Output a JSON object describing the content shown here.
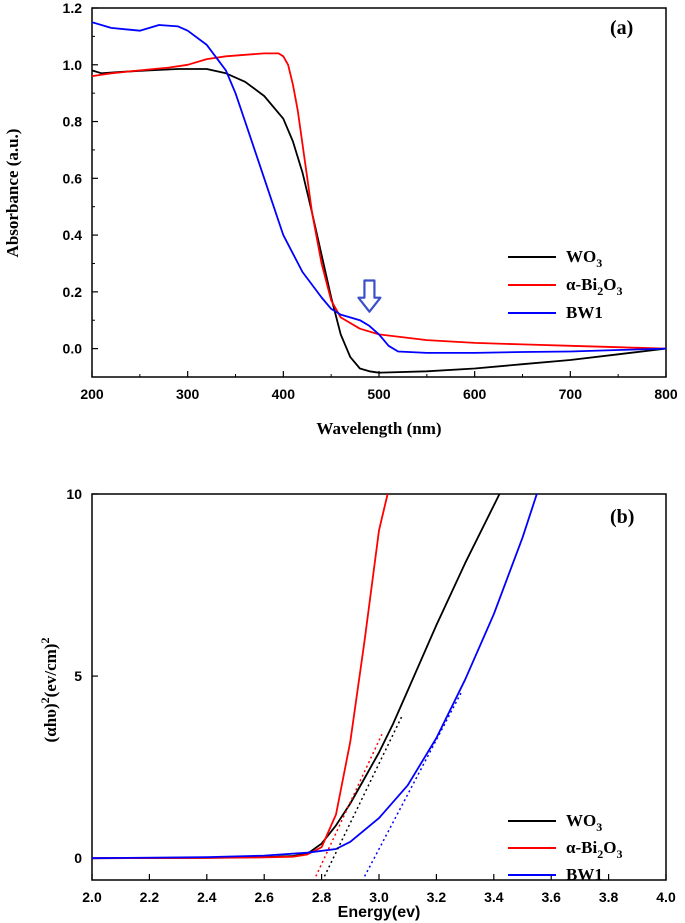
{
  "colors": {
    "wo3": "#000000",
    "bi2o3": "#ff0000",
    "bw1": "#0000ff",
    "arrow": "#3b4fc8"
  },
  "chart_data": [
    {
      "type": "line",
      "panel_label": "(a)",
      "xlabel": "Wavelength (nm)",
      "ylabel": "Absorbance (a.u.)",
      "xlim": [
        200,
        800
      ],
      "ylim": [
        -0.1,
        1.2
      ],
      "xticks": [
        "200",
        "300",
        "400",
        "500",
        "600",
        "700",
        "800"
      ],
      "yticks": [
        "0.0",
        "0.2",
        "0.4",
        "0.6",
        "0.8",
        "1.0",
        "1.2"
      ],
      "xtick_values": [
        200,
        300,
        400,
        500,
        600,
        700,
        800
      ],
      "ytick_values": [
        0.0,
        0.2,
        0.4,
        0.6,
        0.8,
        1.0,
        1.2
      ],
      "legend_position": "right",
      "legend": [
        {
          "base": "WO",
          "sub": "3",
          "rest": "",
          "sub2": "",
          "color_key": "wo3"
        },
        {
          "base": "α-Bi",
          "sub": "2",
          "rest": "O",
          "sub2": "3",
          "color_key": "bi2o3"
        },
        {
          "base": "BW1",
          "sub": "",
          "rest": "",
          "sub2": "",
          "color_key": "bw1"
        }
      ],
      "annotation": {
        "type": "arrow-down",
        "x": 490,
        "y_top": 0.24,
        "y_bottom": 0.13
      },
      "series": [
        {
          "name": "WO3",
          "color_key": "wo3",
          "x": [
            200,
            210,
            230,
            260,
            290,
            320,
            340,
            360,
            380,
            400,
            410,
            420,
            430,
            440,
            450,
            460,
            470,
            480,
            490,
            500,
            550,
            600,
            650,
            700,
            750,
            800
          ],
          "y": [
            0.98,
            0.97,
            0.975,
            0.98,
            0.985,
            0.985,
            0.97,
            0.94,
            0.89,
            0.81,
            0.73,
            0.62,
            0.48,
            0.33,
            0.18,
            0.05,
            -0.03,
            -0.07,
            -0.08,
            -0.085,
            -0.08,
            -0.07,
            -0.055,
            -0.04,
            -0.02,
            0.0
          ]
        },
        {
          "name": "α-Bi2O3",
          "color_key": "bi2o3",
          "x": [
            200,
            220,
            250,
            280,
            300,
            320,
            340,
            360,
            380,
            395,
            400,
            405,
            410,
            415,
            420,
            425,
            430,
            440,
            450,
            460,
            480,
            500,
            550,
            600,
            650,
            700,
            750,
            800
          ],
          "y": [
            0.96,
            0.97,
            0.98,
            0.99,
            1.0,
            1.02,
            1.03,
            1.035,
            1.04,
            1.04,
            1.03,
            1.0,
            0.93,
            0.84,
            0.72,
            0.6,
            0.48,
            0.3,
            0.17,
            0.11,
            0.07,
            0.05,
            0.03,
            0.02,
            0.015,
            0.01,
            0.005,
            0.0
          ]
        },
        {
          "name": "BW1",
          "color_key": "bw1",
          "x": [
            200,
            220,
            250,
            270,
            290,
            300,
            320,
            340,
            350,
            360,
            380,
            400,
            420,
            440,
            450,
            460,
            480,
            490,
            500,
            510,
            520,
            550,
            600,
            650,
            700,
            750,
            800
          ],
          "y": [
            1.15,
            1.13,
            1.12,
            1.14,
            1.135,
            1.12,
            1.07,
            0.98,
            0.9,
            0.8,
            0.6,
            0.4,
            0.27,
            0.18,
            0.14,
            0.12,
            0.1,
            0.08,
            0.05,
            0.01,
            -0.01,
            -0.015,
            -0.015,
            -0.012,
            -0.01,
            -0.005,
            0.0
          ]
        }
      ]
    },
    {
      "type": "line",
      "panel_label": "(b)",
      "xlabel": "Energy(ev)",
      "ylabel": "(αhυ)2(ev/cm)2",
      "ylabel_parts": {
        "a": "(αhυ)",
        "sup1": "2",
        "b": "(ev/cm)",
        "sup2": "2"
      },
      "xlim": [
        2.0,
        4.0
      ],
      "ylim": [
        -0.6,
        10
      ],
      "xticks": [
        "2.0",
        "2.2",
        "2.4",
        "2.6",
        "2.8",
        "3.0",
        "3.2",
        "3.4",
        "3.6",
        "3.8",
        "4.0"
      ],
      "yticks": [
        "0",
        "5",
        "10"
      ],
      "xtick_values": [
        2.0,
        2.2,
        2.4,
        2.6,
        2.8,
        3.0,
        3.2,
        3.4,
        3.6,
        3.8,
        4.0
      ],
      "ytick_values": [
        0,
        5,
        10
      ],
      "legend_position": "bottom-right",
      "legend": [
        {
          "base": "WO",
          "sub": "3",
          "rest": "",
          "sub2": "",
          "color_key": "wo3"
        },
        {
          "base": "α-Bi",
          "sub": "2",
          "rest": "O",
          "sub2": "3",
          "color_key": "bi2o3"
        },
        {
          "base": "BW1",
          "sub": "",
          "rest": "",
          "sub2": "",
          "color_key": "bw1"
        }
      ],
      "series": [
        {
          "name": "WO3",
          "color_key": "wo3",
          "x": [
            2.0,
            2.4,
            2.6,
            2.7,
            2.75,
            2.8,
            2.85,
            2.9,
            2.95,
            3.0,
            3.05,
            3.1,
            3.2,
            3.3,
            3.42
          ],
          "y": [
            0.0,
            0.01,
            0.03,
            0.06,
            0.12,
            0.4,
            0.9,
            1.5,
            2.2,
            2.9,
            3.7,
            4.6,
            6.4,
            8.1,
            10.0
          ]
        },
        {
          "name": "α-Bi2O3",
          "color_key": "bi2o3",
          "x": [
            2.0,
            2.4,
            2.6,
            2.7,
            2.75,
            2.8,
            2.85,
            2.9,
            2.95,
            3.0,
            3.03
          ],
          "y": [
            0.0,
            0.01,
            0.02,
            0.04,
            0.1,
            0.3,
            1.2,
            3.2,
            6.0,
            9.0,
            10.0
          ]
        },
        {
          "name": "BW1",
          "color_key": "bw1",
          "x": [
            2.0,
            2.4,
            2.6,
            2.75,
            2.85,
            2.9,
            3.0,
            3.1,
            3.2,
            3.3,
            3.4,
            3.5,
            3.55
          ],
          "y": [
            0.0,
            0.03,
            0.07,
            0.15,
            0.25,
            0.45,
            1.1,
            2.0,
            3.3,
            4.9,
            6.7,
            8.8,
            10.0
          ]
        }
      ],
      "fit_lines": [
        {
          "color_key": "wo3",
          "x": [
            2.81,
            3.08
          ],
          "y": [
            -0.5,
            3.9
          ]
        },
        {
          "color_key": "bi2o3",
          "x": [
            2.78,
            3.01
          ],
          "y": [
            -0.5,
            3.4
          ]
        },
        {
          "color_key": "bw1",
          "x": [
            2.95,
            3.29
          ],
          "y": [
            -0.5,
            4.6
          ]
        }
      ]
    }
  ]
}
